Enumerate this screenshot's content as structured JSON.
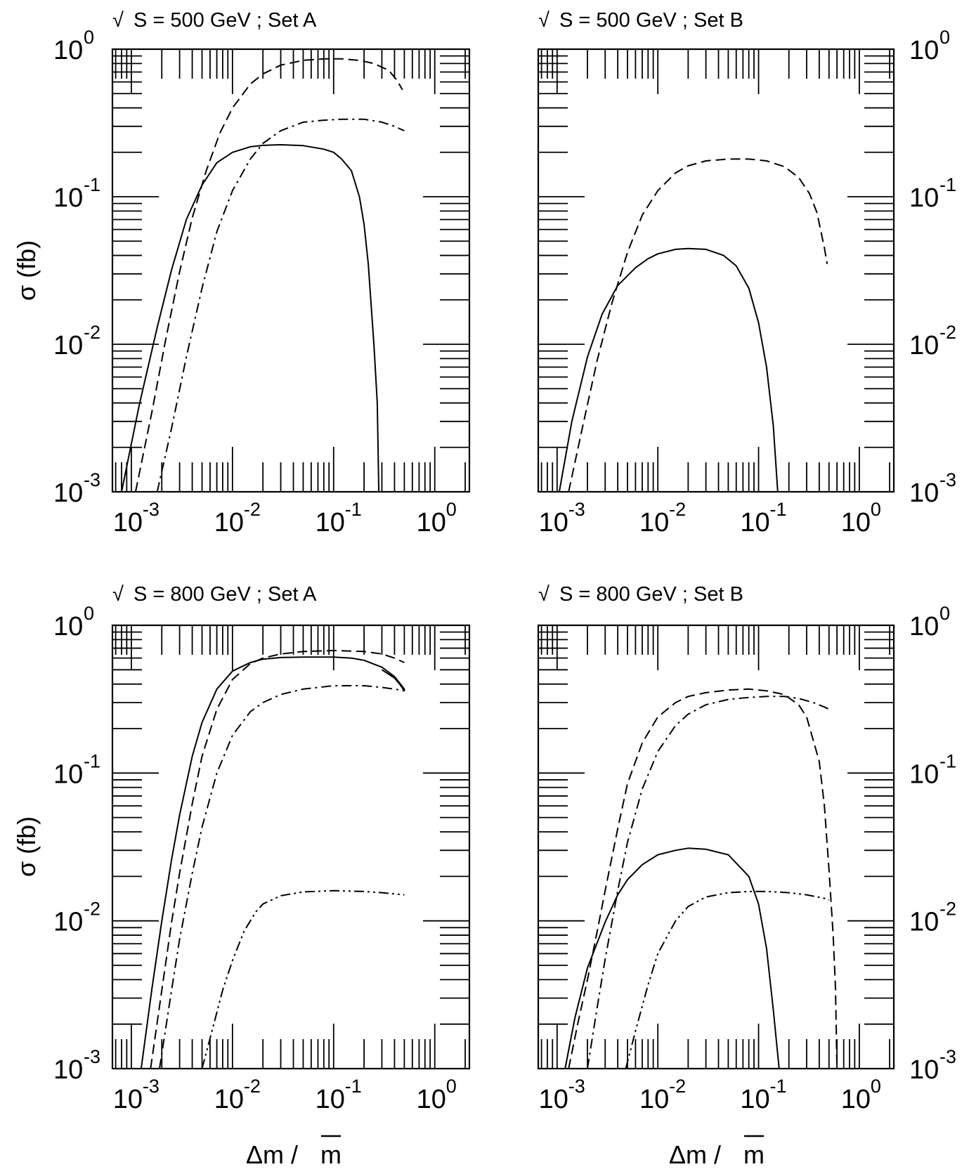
{
  "figure": {
    "ylabel": "σ (fb)",
    "xlabel_prefix": "Δm / ",
    "xlabel_mbar": "m"
  },
  "colors": {
    "ink": "#000000",
    "background": "#ffffff"
  },
  "chart_data": [
    {
      "type": "line",
      "title_root": "√",
      "title": "S = 500 GeV ; Set A",
      "xscale": "log",
      "yscale": "log",
      "xlim": [
        0.00065,
        2.2
      ],
      "ylim": [
        0.001,
        1.0
      ],
      "x_tick_labels": [
        {
          "base": "10",
          "exp": "-3"
        },
        {
          "base": "10",
          "exp": "-2"
        },
        {
          "base": "10",
          "exp": "-1"
        },
        {
          "base": "10",
          "exp": "0"
        }
      ],
      "y_tick_labels": [
        {
          "base": "10",
          "exp": "-3"
        },
        {
          "base": "10",
          "exp": "-2"
        },
        {
          "base": "10",
          "exp": "-1"
        },
        {
          "base": "10",
          "exp": "0"
        }
      ],
      "y_labels_side": "left",
      "show_ylabel": true,
      "show_xlabel": false,
      "legend": "none",
      "grid": false,
      "series": [
        {
          "style": "solid",
          "x": [
            0.0008,
            0.0012,
            0.0018,
            0.0025,
            0.0035,
            0.005,
            0.007,
            0.01,
            0.015,
            0.02,
            0.03,
            0.05,
            0.08,
            0.1,
            0.12,
            0.15,
            0.18,
            0.2,
            0.22,
            0.25,
            0.27,
            0.28
          ],
          "y": [
            0.001,
            0.0039,
            0.013,
            0.032,
            0.07,
            0.12,
            0.17,
            0.2,
            0.218,
            0.223,
            0.225,
            0.222,
            0.21,
            0.2,
            0.18,
            0.15,
            0.1,
            0.065,
            0.035,
            0.01,
            0.004,
            0.001
          ]
        },
        {
          "style": "dashed",
          "x": [
            0.0011,
            0.0016,
            0.0022,
            0.003,
            0.004,
            0.0055,
            0.0075,
            0.01,
            0.015,
            0.02,
            0.03,
            0.05,
            0.08,
            0.12,
            0.18,
            0.25,
            0.35,
            0.42,
            0.48
          ],
          "y": [
            0.001,
            0.0035,
            0.011,
            0.031,
            0.072,
            0.15,
            0.27,
            0.4,
            0.58,
            0.68,
            0.78,
            0.84,
            0.86,
            0.86,
            0.84,
            0.8,
            0.72,
            0.62,
            0.53
          ]
        },
        {
          "style": "dashdot",
          "x": [
            0.0018,
            0.0025,
            0.0035,
            0.005,
            0.007,
            0.01,
            0.015,
            0.02,
            0.03,
            0.05,
            0.08,
            0.12,
            0.2,
            0.3,
            0.4,
            0.5
          ],
          "y": [
            0.001,
            0.0027,
            0.0082,
            0.024,
            0.058,
            0.11,
            0.18,
            0.23,
            0.28,
            0.32,
            0.33,
            0.335,
            0.335,
            0.32,
            0.3,
            0.28
          ]
        }
      ]
    },
    {
      "type": "line",
      "title_root": "√",
      "title": "S = 500 GeV ; Set B",
      "xscale": "log",
      "yscale": "log",
      "xlim": [
        0.00065,
        2.2
      ],
      "ylim": [
        0.001,
        1.0
      ],
      "x_tick_labels": [
        {
          "base": "10",
          "exp": "-3"
        },
        {
          "base": "10",
          "exp": "-2"
        },
        {
          "base": "10",
          "exp": "-1"
        },
        {
          "base": "10",
          "exp": "0"
        }
      ],
      "y_tick_labels": [
        {
          "base": "10",
          "exp": "-3"
        },
        {
          "base": "10",
          "exp": "-2"
        },
        {
          "base": "10",
          "exp": "-1"
        },
        {
          "base": "10",
          "exp": "0"
        }
      ],
      "y_labels_side": "right",
      "show_ylabel": false,
      "show_xlabel": false,
      "legend": "none",
      "grid": false,
      "series": [
        {
          "style": "solid",
          "x": [
            0.00105,
            0.0014,
            0.002,
            0.0028,
            0.004,
            0.006,
            0.008,
            0.01,
            0.015,
            0.02,
            0.03,
            0.045,
            0.06,
            0.08,
            0.1,
            0.12,
            0.14,
            0.155
          ],
          "y": [
            0.001,
            0.003,
            0.0082,
            0.016,
            0.025,
            0.033,
            0.038,
            0.041,
            0.044,
            0.0445,
            0.044,
            0.04,
            0.034,
            0.024,
            0.014,
            0.007,
            0.0028,
            0.001
          ]
        },
        {
          "style": "dashed",
          "x": [
            0.0013,
            0.0018,
            0.0025,
            0.0035,
            0.005,
            0.007,
            0.01,
            0.015,
            0.02,
            0.03,
            0.05,
            0.08,
            0.12,
            0.18,
            0.25,
            0.32,
            0.38,
            0.45,
            0.48
          ],
          "y": [
            0.001,
            0.0028,
            0.0078,
            0.019,
            0.042,
            0.075,
            0.11,
            0.145,
            0.162,
            0.175,
            0.18,
            0.18,
            0.175,
            0.16,
            0.135,
            0.105,
            0.078,
            0.045,
            0.035
          ]
        }
      ]
    },
    {
      "type": "line",
      "title_root": "√",
      "title": "S = 800 GeV ; Set A",
      "xscale": "log",
      "yscale": "log",
      "xlim": [
        0.00065,
        2.2
      ],
      "ylim": [
        0.001,
        1.0
      ],
      "x_tick_labels": [
        {
          "base": "10",
          "exp": "-3"
        },
        {
          "base": "10",
          "exp": "-2"
        },
        {
          "base": "10",
          "exp": "-1"
        },
        {
          "base": "10",
          "exp": "0"
        }
      ],
      "y_tick_labels": [
        {
          "base": "10",
          "exp": "-3"
        },
        {
          "base": "10",
          "exp": "-2"
        },
        {
          "base": "10",
          "exp": "-1"
        },
        {
          "base": "10",
          "exp": "0"
        }
      ],
      "y_labels_side": "left",
      "show_ylabel": true,
      "show_xlabel": true,
      "legend": "none",
      "grid": false,
      "series": [
        {
          "style": "solid",
          "x": [
            0.00125,
            0.0016,
            0.002,
            0.0025,
            0.003,
            0.004,
            0.005,
            0.007,
            0.01,
            0.015,
            0.02,
            0.03,
            0.05,
            0.1,
            0.15,
            0.2,
            0.3,
            0.4,
            0.5,
            0.5,
            0.45,
            0.4,
            0.3
          ],
          "y": [
            0.001,
            0.0035,
            0.01,
            0.026,
            0.052,
            0.13,
            0.22,
            0.37,
            0.49,
            0.56,
            0.59,
            0.605,
            0.61,
            0.61,
            0.6,
            0.58,
            0.52,
            0.45,
            0.37,
            0.36,
            0.4,
            0.44,
            0.5
          ]
        },
        {
          "style": "dashed",
          "x": [
            0.00155,
            0.002,
            0.0025,
            0.003,
            0.004,
            0.005,
            0.007,
            0.01,
            0.015,
            0.02,
            0.03,
            0.05,
            0.1,
            0.2,
            0.3,
            0.4,
            0.5
          ],
          "y": [
            0.001,
            0.0034,
            0.0098,
            0.021,
            0.062,
            0.13,
            0.27,
            0.43,
            0.55,
            0.6,
            0.64,
            0.665,
            0.675,
            0.665,
            0.64,
            0.6,
            0.56
          ]
        },
        {
          "style": "dashdot",
          "x": [
            0.0019,
            0.0025,
            0.003,
            0.004,
            0.005,
            0.007,
            0.01,
            0.015,
            0.02,
            0.03,
            0.05,
            0.1,
            0.2,
            0.3,
            0.4,
            0.5
          ],
          "y": [
            0.001,
            0.0034,
            0.0075,
            0.021,
            0.043,
            0.1,
            0.18,
            0.26,
            0.3,
            0.34,
            0.37,
            0.39,
            0.39,
            0.38,
            0.37,
            0.36
          ]
        },
        {
          "style": "dashdotdot",
          "x": [
            0.005,
            0.006,
            0.008,
            0.01,
            0.013,
            0.017,
            0.02,
            0.03,
            0.05,
            0.1,
            0.2,
            0.3,
            0.5
          ],
          "y": [
            0.001,
            0.0016,
            0.0034,
            0.0054,
            0.0085,
            0.0115,
            0.013,
            0.0148,
            0.0157,
            0.016,
            0.0158,
            0.0155,
            0.015
          ]
        }
      ]
    },
    {
      "type": "line",
      "title_root": "√",
      "title": "S = 800 GeV ; Set B",
      "xscale": "log",
      "yscale": "log",
      "xlim": [
        0.00065,
        2.2
      ],
      "ylim": [
        0.001,
        1.0
      ],
      "x_tick_labels": [
        {
          "base": "10",
          "exp": "-3"
        },
        {
          "base": "10",
          "exp": "-2"
        },
        {
          "base": "10",
          "exp": "-1"
        },
        {
          "base": "10",
          "exp": "0"
        }
      ],
      "y_tick_labels": [
        {
          "base": "10",
          "exp": "-3"
        },
        {
          "base": "10",
          "exp": "-2"
        },
        {
          "base": "10",
          "exp": "-1"
        },
        {
          "base": "10",
          "exp": "0"
        }
      ],
      "y_labels_side": "right",
      "show_ylabel": false,
      "show_xlabel": true,
      "legend": "none",
      "grid": false,
      "series": [
        {
          "style": "solid",
          "x": [
            0.0012,
            0.0015,
            0.002,
            0.003,
            0.004,
            0.005,
            0.007,
            0.01,
            0.015,
            0.02,
            0.03,
            0.05,
            0.08,
            0.1,
            0.12,
            0.14,
            0.16
          ],
          "y": [
            0.001,
            0.0022,
            0.0048,
            0.0098,
            0.015,
            0.019,
            0.024,
            0.028,
            0.03,
            0.031,
            0.0305,
            0.028,
            0.02,
            0.013,
            0.0065,
            0.0025,
            0.001
          ]
        },
        {
          "style": "dashed",
          "x": [
            0.0013,
            0.0016,
            0.002,
            0.0025,
            0.003,
            0.004,
            0.005,
            0.007,
            0.01,
            0.015,
            0.02,
            0.03,
            0.05,
            0.08,
            0.12,
            0.18,
            0.25,
            0.3,
            0.4,
            0.45,
            0.5,
            0.55,
            0.58,
            0.6
          ],
          "y": [
            0.001,
            0.002,
            0.004,
            0.0085,
            0.016,
            0.042,
            0.085,
            0.16,
            0.24,
            0.3,
            0.33,
            0.35,
            0.365,
            0.37,
            0.36,
            0.34,
            0.29,
            0.24,
            0.12,
            0.06,
            0.022,
            0.008,
            0.0035,
            0.001
          ]
        },
        {
          "style": "dashdot",
          "x": [
            0.002,
            0.0025,
            0.003,
            0.004,
            0.005,
            0.007,
            0.01,
            0.015,
            0.02,
            0.03,
            0.05,
            0.08,
            0.12,
            0.18,
            0.25,
            0.35,
            0.45,
            0.5
          ],
          "y": [
            0.001,
            0.0026,
            0.0055,
            0.016,
            0.034,
            0.078,
            0.14,
            0.21,
            0.25,
            0.29,
            0.315,
            0.325,
            0.33,
            0.33,
            0.32,
            0.3,
            0.28,
            0.27
          ]
        },
        {
          "style": "dashdotdot",
          "x": [
            0.0048,
            0.006,
            0.008,
            0.01,
            0.015,
            0.02,
            0.03,
            0.05,
            0.08,
            0.12,
            0.2,
            0.3,
            0.45,
            0.5
          ],
          "y": [
            0.001,
            0.0018,
            0.0037,
            0.006,
            0.01,
            0.0125,
            0.0145,
            0.0155,
            0.0158,
            0.0158,
            0.0155,
            0.015,
            0.0142,
            0.0138
          ]
        }
      ]
    }
  ]
}
